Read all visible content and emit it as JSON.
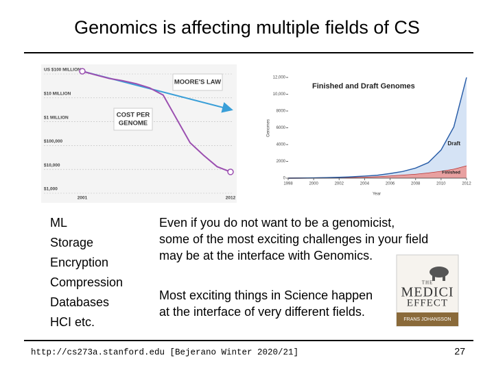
{
  "slide": {
    "title": "Genomics is affecting multiple fields of CS",
    "left_list": [
      "ML",
      "Storage",
      "Encryption",
      "Compression",
      "Databases",
      "HCI   etc."
    ],
    "paragraphs": [
      [
        "Even if you do not want to be a genomicist,",
        " some of the most exciting challenges in your field",
        " may be at the interface with Genomics."
      ],
      [
        "Most exciting things in Science happen",
        " at the interface of very different fields."
      ]
    ],
    "book": {
      "title": [
        "THE",
        "MEDICI",
        "EFFECT"
      ],
      "author": "FRANS JOHANSSON"
    },
    "footer": "http://cs273a.stanford.edu [Bejerano Winter 2020/21]",
    "page_number": "27"
  },
  "chart_data": [
    {
      "type": "line",
      "log_scale": true,
      "annotations": [
        [
          "MOORE'S LAW"
        ],
        [
          "COST PER",
          "GENOME"
        ]
      ],
      "xlim": [
        2001,
        2012
      ],
      "xticks": [
        2001,
        2012
      ],
      "ylim": [
        1000,
        100000000
      ],
      "yticks": [
        {
          "value": 100000000,
          "label": "US $100 MILLION"
        },
        {
          "value": 10000000,
          "label": "$10 MILLION"
        },
        {
          "value": 1000000,
          "label": "$1 MILLION"
        },
        {
          "value": 100000,
          "label": "$100,000"
        },
        {
          "value": 10000,
          "label": "$10,000"
        },
        {
          "value": 1000,
          "label": "$1,000"
        }
      ],
      "series": [
        {
          "color": "#3a9fd8",
          "x": [
            2001,
            2012
          ],
          "values": [
            100000000,
            2500000
          ]
        },
        {
          "color": "#9b4fb0",
          "x": [
            2001,
            2002,
            2003,
            2004,
            2005,
            2006,
            2007,
            2008,
            2009,
            2010,
            2011,
            2012
          ],
          "values": [
            100000000,
            70000000,
            50000000,
            40000000,
            30000000,
            20000000,
            10000000,
            1000000,
            100000,
            30000,
            10000,
            6000
          ]
        }
      ]
    },
    {
      "type": "stacked_area",
      "title": "Finished and Draft Genomes",
      "xlabel": "Year",
      "ylabel": "Genomes",
      "x": [
        1998,
        1999,
        2000,
        2001,
        2002,
        2003,
        2004,
        2005,
        2006,
        2007,
        2008,
        2009,
        2010,
        2011,
        2012
      ],
      "xlim": [
        1998,
        2012
      ],
      "xticks": [
        1998,
        2000,
        2002,
        2004,
        2006,
        2008,
        2010,
        2012
      ],
      "ylim": [
        0,
        12000
      ],
      "yticks": [
        0,
        {
          "value": 2000,
          "label": "2000"
        },
        {
          "value": 4000,
          "label": "4000"
        },
        {
          "value": 6000,
          "label": "6000"
        },
        {
          "value": 8000,
          "label": "8000"
        },
        {
          "value": 10000,
          "label": "10,000"
        },
        {
          "value": 12000,
          "label": "12,000"
        }
      ],
      "grid": false,
      "series": [
        {
          "name": "Finished",
          "color": "#e8a0a0",
          "line": "#b83232",
          "values": [
            0,
            10,
            20,
            40,
            60,
            100,
            150,
            200,
            300,
            400,
            500,
            650,
            850,
            1100,
            1500
          ]
        },
        {
          "name": "Draft",
          "color": "#d5e3f5",
          "line": "#2a5ea8",
          "values": [
            0,
            5,
            10,
            20,
            40,
            60,
            100,
            150,
            250,
            400,
            700,
            1200,
            2500,
            5000,
            10500
          ]
        }
      ]
    }
  ]
}
